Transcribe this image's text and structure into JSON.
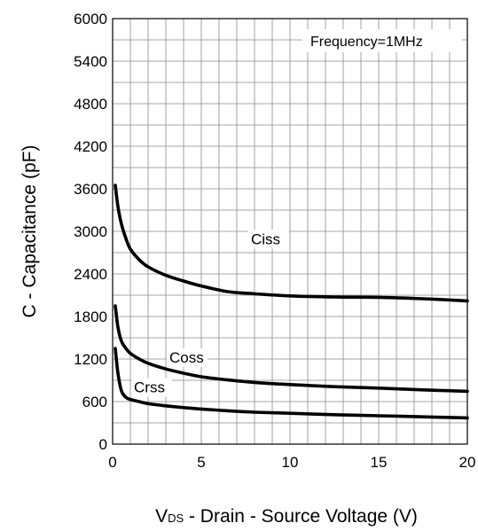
{
  "chart_data": {
    "type": "line",
    "xlabel_prefix": "V",
    "xlabel_sub": "DS",
    "xlabel_rest": " - Drain - Source Voltage (V)",
    "ylabel": "C - Capacitance (pF)",
    "annotation": "Frequency=1MHz",
    "xlim": [
      0,
      20
    ],
    "ylim": [
      0,
      6000
    ],
    "x_ticks": [
      0,
      5,
      10,
      15,
      20
    ],
    "y_ticks": [
      0,
      600,
      1200,
      1800,
      2400,
      3000,
      3600,
      4200,
      4800,
      5400,
      6000
    ],
    "grid": true,
    "series": [
      {
        "name": "Ciss",
        "x": [
          0.15,
          0.3,
          0.5,
          0.75,
          1,
          1.5,
          2,
          3,
          4,
          5,
          6.5,
          8,
          10,
          12.5,
          15,
          17.5,
          20
        ],
        "y": [
          3650,
          3350,
          3100,
          2900,
          2750,
          2600,
          2500,
          2380,
          2300,
          2230,
          2150,
          2120,
          2090,
          2075,
          2070,
          2050,
          2020
        ]
      },
      {
        "name": "Coss",
        "x": [
          0.15,
          0.3,
          0.5,
          0.75,
          1,
          1.5,
          2,
          3,
          4,
          5,
          6.5,
          8,
          10,
          12.5,
          15,
          17.5,
          20
        ],
        "y": [
          1950,
          1650,
          1450,
          1350,
          1280,
          1200,
          1140,
          1060,
          1000,
          950,
          905,
          870,
          840,
          810,
          790,
          765,
          745
        ]
      },
      {
        "name": "Crss",
        "x": [
          0.15,
          0.3,
          0.5,
          0.75,
          1,
          1.5,
          2,
          3,
          4,
          5,
          6.5,
          8,
          10,
          12.5,
          15,
          17.5,
          20
        ],
        "y": [
          1350,
          1000,
          750,
          660,
          630,
          600,
          570,
          540,
          515,
          495,
          470,
          450,
          435,
          415,
          400,
          385,
          370
        ]
      }
    ]
  }
}
